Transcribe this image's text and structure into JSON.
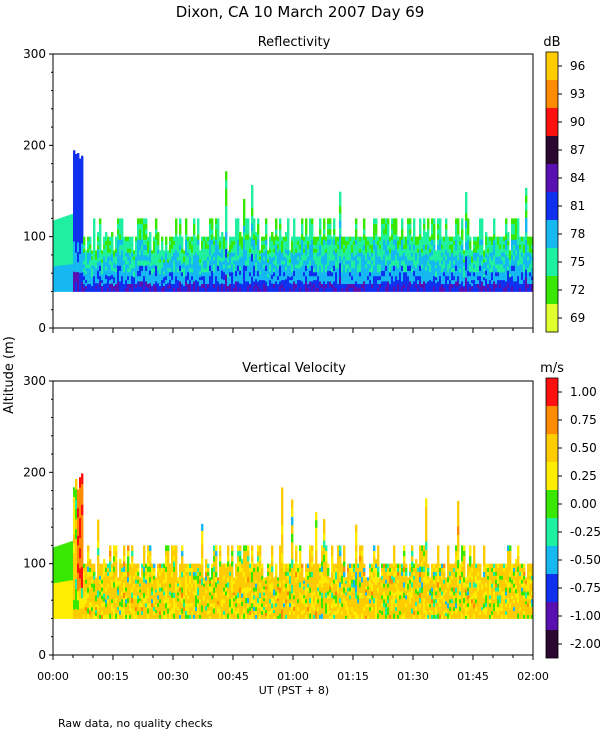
{
  "title": "Dixon, CA 10 March 2007  Day  69",
  "ylabel": "Altitude (m)",
  "footnote": "Raw data, no quality checks",
  "colors": {
    "axis": "#000000",
    "background": "#ffffff"
  },
  "chart_data": [
    {
      "type": "heatmap",
      "title": "Reflectivity",
      "xlabel": "UT  (PST + 8)",
      "ylabel": "Altitude (m)",
      "x_ticks": [
        "00:00",
        "00:15",
        "00:30",
        "00:45",
        "01:00",
        "01:15",
        "01:30",
        "01:45",
        "02:00"
      ],
      "xlim_minutes": [
        0,
        120
      ],
      "ylim": [
        0,
        300
      ],
      "y_ticks": [
        0,
        100,
        200,
        300
      ],
      "colorbar": {
        "unit": "dB",
        "levels": [
          "69",
          "72",
          "75",
          "78",
          "81",
          "84",
          "87",
          "90",
          "93",
          "96"
        ],
        "colors": [
          "#e0ff30",
          "#39e800",
          "#1ef0a0",
          "#15b8f0",
          "#1030f0",
          "#5a10b0",
          "#2a0830",
          "#ff1010",
          "#ff8c00",
          "#ffcc00"
        ]
      },
      "profile": {
        "base_altitude": 40,
        "typical_top": 100,
        "plume_peak_altitude": 200,
        "plume_time_minutes": 6
      }
    },
    {
      "type": "heatmap",
      "title": "Vertical Velocity",
      "xlabel": "UT  (PST + 8)",
      "ylabel": "Altitude (m)",
      "x_ticks": [
        "00:00",
        "00:15",
        "00:30",
        "00:45",
        "01:00",
        "01:15",
        "01:30",
        "01:45",
        "02:00"
      ],
      "xlim_minutes": [
        0,
        120
      ],
      "ylim": [
        0,
        300
      ],
      "y_ticks": [
        0,
        100,
        200,
        300
      ],
      "colorbar": {
        "unit": "m/s",
        "levels": [
          "-2.00",
          "-1.00",
          "-0.75",
          "-0.50",
          "-0.25",
          "0.00",
          "0.25",
          "0.50",
          "0.75",
          "1.00"
        ],
        "colors": [
          "#2a0830",
          "#5a10b0",
          "#1030f0",
          "#15b8f0",
          "#1ef0a0",
          "#39e800",
          "#ffee00",
          "#ffcc00",
          "#ff8c00",
          "#ff1010"
        ]
      },
      "profile": {
        "base_altitude": 40,
        "typical_top": 100,
        "plume_peak_altitude": 200,
        "plume_time_minutes": 6
      }
    }
  ]
}
